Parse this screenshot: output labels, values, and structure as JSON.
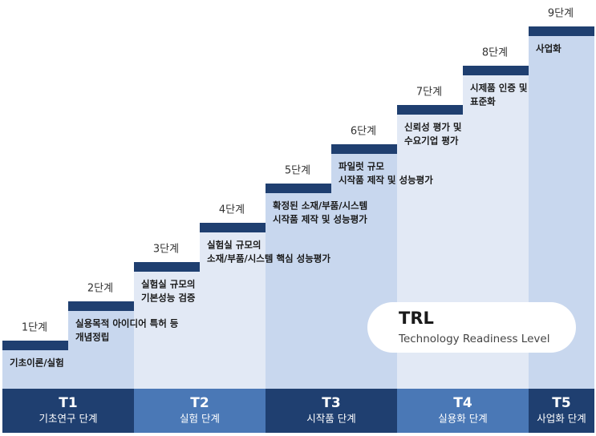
{
  "stages": [
    {
      "title": "T1",
      "name": "기초연구 단계",
      "steps": [
        {
          "label": "1단계",
          "desc": [
            "기초이론/실험"
          ]
        },
        {
          "label": "2단계",
          "desc": [
            "실용목적 아이디어 특허 등",
            "개념정립"
          ]
        }
      ]
    },
    {
      "title": "T2",
      "name": "실험 단계",
      "steps": [
        {
          "label": "3단계",
          "desc": [
            "실험실 규모의",
            "기본성능 검증"
          ]
        },
        {
          "label": "4단계",
          "desc": [
            "실험실 규모의",
            "소재/부품/시스템 핵심 성능평가"
          ]
        }
      ]
    },
    {
      "title": "T3",
      "name": "시작품 단계",
      "steps": [
        {
          "label": "5단계",
          "desc": [
            "확정된 소재/부품/시스템",
            "시작품 제작 및 성능평가"
          ]
        },
        {
          "label": "6단계",
          "desc": [
            "파일럿 규모",
            "시작품 제작 및 성능평가"
          ]
        }
      ]
    },
    {
      "title": "T4",
      "name": "실용화 단계",
      "steps": [
        {
          "label": "7단계",
          "desc": [
            "신뢰성 평가 및",
            "수요기업 평가"
          ]
        },
        {
          "label": "8단계",
          "desc": [
            "시제품 인증 및",
            "표준화"
          ]
        }
      ]
    },
    {
      "title": "T5",
      "name": "사업화 단계",
      "steps": [
        {
          "label": "9단계",
          "desc": [
            "사업화"
          ]
        }
      ]
    }
  ],
  "badge": {
    "title": "TRL",
    "subtitle": "Technology Readiness Level"
  }
}
